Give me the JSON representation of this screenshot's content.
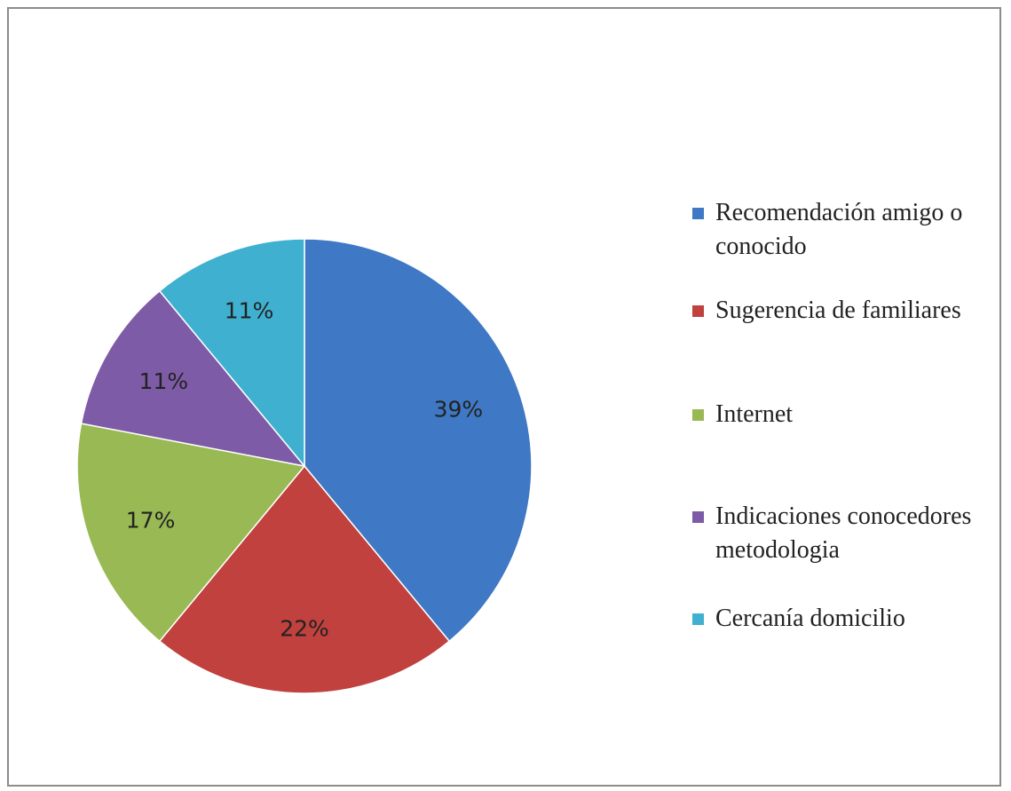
{
  "chart_data": {
    "type": "pie",
    "categories": [
      "Recomendación amigo o conocido",
      "Sugerencia de familiares",
      "Internet",
      "Indicaciones conocedores metodologia",
      "Cercanía domicilio"
    ],
    "values": [
      39,
      22,
      17,
      11,
      11
    ],
    "value_labels": [
      "39%",
      "22%",
      "17%",
      "11%",
      "11%"
    ],
    "colors": [
      "#3f78c4",
      "#c0413e",
      "#98b954",
      "#7d5ba6",
      "#3fb0cf"
    ],
    "legend": "right"
  }
}
